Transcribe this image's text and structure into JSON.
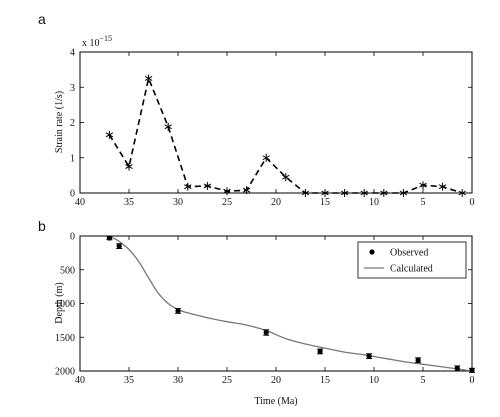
{
  "chart_data": [
    {
      "panel_label": "a",
      "type": "line",
      "marker": "asterisk",
      "line_style": "dashed",
      "xlim": [
        40,
        0
      ],
      "ylim": [
        0,
        4
      ],
      "xticks": [
        40,
        35,
        30,
        25,
        20,
        15,
        10,
        5,
        0
      ],
      "yticks": [
        0,
        1,
        2,
        3,
        4
      ],
      "ylabel": "Strain rate (1/s)",
      "y_scale_label": "x 10",
      "y_scale_exponent": "−15",
      "series": [
        {
          "x": [
            37,
            35,
            33,
            31,
            29,
            27,
            25,
            23,
            21,
            19,
            17,
            15,
            13,
            11,
            9,
            7,
            5,
            3,
            1
          ],
          "y": [
            1.65,
            0.75,
            3.25,
            1.88,
            0.18,
            0.2,
            0.05,
            0.08,
            1.0,
            0.45,
            0.0,
            0.0,
            0.0,
            0.0,
            0.0,
            0.0,
            0.22,
            0.18,
            0.0
          ]
        }
      ]
    },
    {
      "panel_label": "b",
      "type": "line",
      "xlim": [
        40,
        0
      ],
      "ylim": [
        0,
        2000
      ],
      "y_inverted": true,
      "xticks": [
        40,
        35,
        30,
        25,
        20,
        15,
        10,
        5,
        0
      ],
      "yticks": [
        0,
        500,
        1000,
        1500,
        2000
      ],
      "xlabel": "Time (Ma)",
      "ylabel": "Depth (m)",
      "legend_position": "top-right",
      "series": [
        {
          "name": "Observed",
          "style": "points-with-errorbars",
          "x": [
            37,
            36,
            30,
            21,
            15.5,
            10.5,
            5.5,
            1.5,
            0
          ],
          "y": [
            30,
            150,
            1110,
            1430,
            1710,
            1780,
            1840,
            1960,
            1990
          ],
          "error": [
            25,
            35,
            35,
            40,
            35,
            35,
            35,
            35,
            30
          ]
        },
        {
          "name": "Calculated",
          "style": "line",
          "x": [
            37,
            36,
            35,
            34,
            33,
            32,
            31,
            30,
            29,
            27,
            25,
            23,
            21,
            19,
            17,
            15,
            13,
            11,
            9,
            7,
            5,
            3,
            1,
            0
          ],
          "y": [
            0,
            80,
            200,
            380,
            620,
            850,
            1000,
            1090,
            1140,
            1210,
            1270,
            1320,
            1400,
            1520,
            1600,
            1660,
            1720,
            1760,
            1810,
            1860,
            1900,
            1940,
            1980,
            2000
          ]
        }
      ]
    }
  ]
}
